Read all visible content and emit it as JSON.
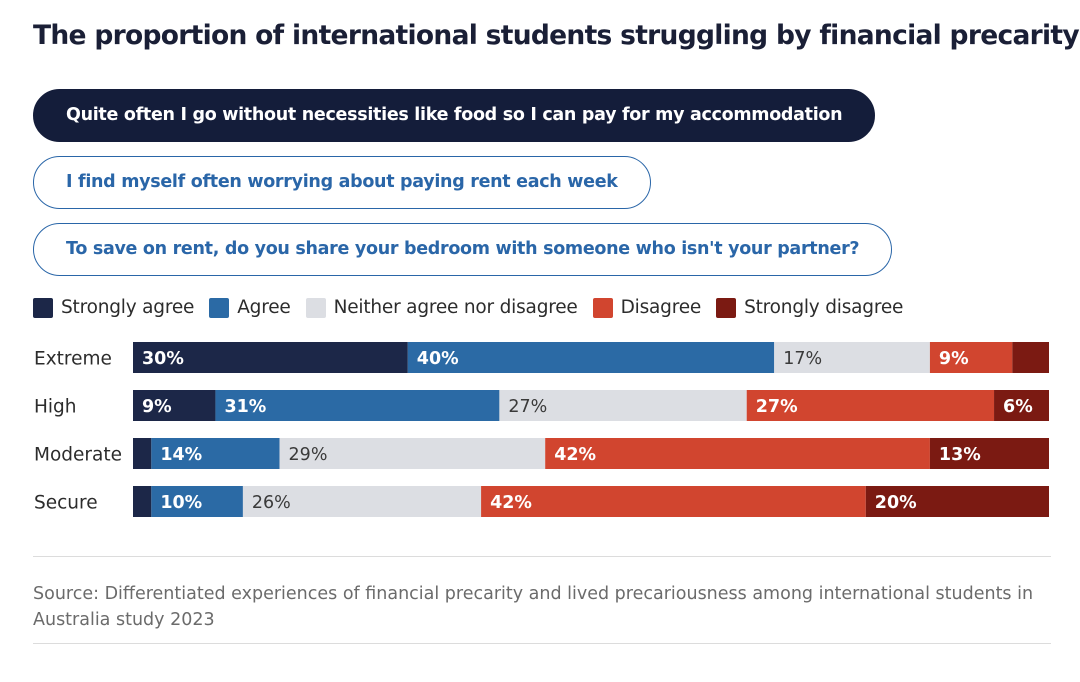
{
  "title": "The proportion of international students struggling by financial precarity",
  "tabs": [
    {
      "label": "Quite often I go without necessities like food so I can pay for my accommodation",
      "active": true
    },
    {
      "label": "I find myself often worrying about paying rent each week",
      "active": false
    },
    {
      "label": "To save on rent, do you share your bedroom with someone who isn't your partner?",
      "active": false
    }
  ],
  "source": "Source: Differentiated experiences of financial precarity and lived precariousness among international students in Australia study 2023",
  "chart_data": {
    "type": "bar",
    "orientation": "horizontal-stacked-100",
    "categories": [
      "Extreme",
      "High",
      "Moderate",
      "Secure"
    ],
    "series": [
      {
        "name": "Strongly agree",
        "color": "#1c2748",
        "values": [
          30,
          9,
          2,
          2
        ],
        "labels": [
          "30%",
          "9%",
          "",
          ""
        ]
      },
      {
        "name": "Agree",
        "color": "#2b6aa5",
        "values": [
          40,
          31,
          14,
          10
        ],
        "labels": [
          "40%",
          "31%",
          "14%",
          "10%"
        ]
      },
      {
        "name": "Neither agree nor disagree",
        "color": "#dcdee3",
        "values": [
          17,
          27,
          29,
          26
        ],
        "labels": [
          "17%",
          "27%",
          "29%",
          "26%"
        ]
      },
      {
        "name": "Disagree",
        "color": "#d1452f",
        "values": [
          9,
          27,
          42,
          42
        ],
        "labels": [
          "9%",
          "27%",
          "42%",
          "42%"
        ]
      },
      {
        "name": "Strongly disagree",
        "color": "#7b1a12",
        "values": [
          4,
          6,
          13,
          20
        ],
        "labels": [
          "",
          "6%",
          "13%",
          "20%"
        ]
      }
    ],
    "legend_position": "top-left",
    "xlim": [
      0,
      100
    ]
  }
}
